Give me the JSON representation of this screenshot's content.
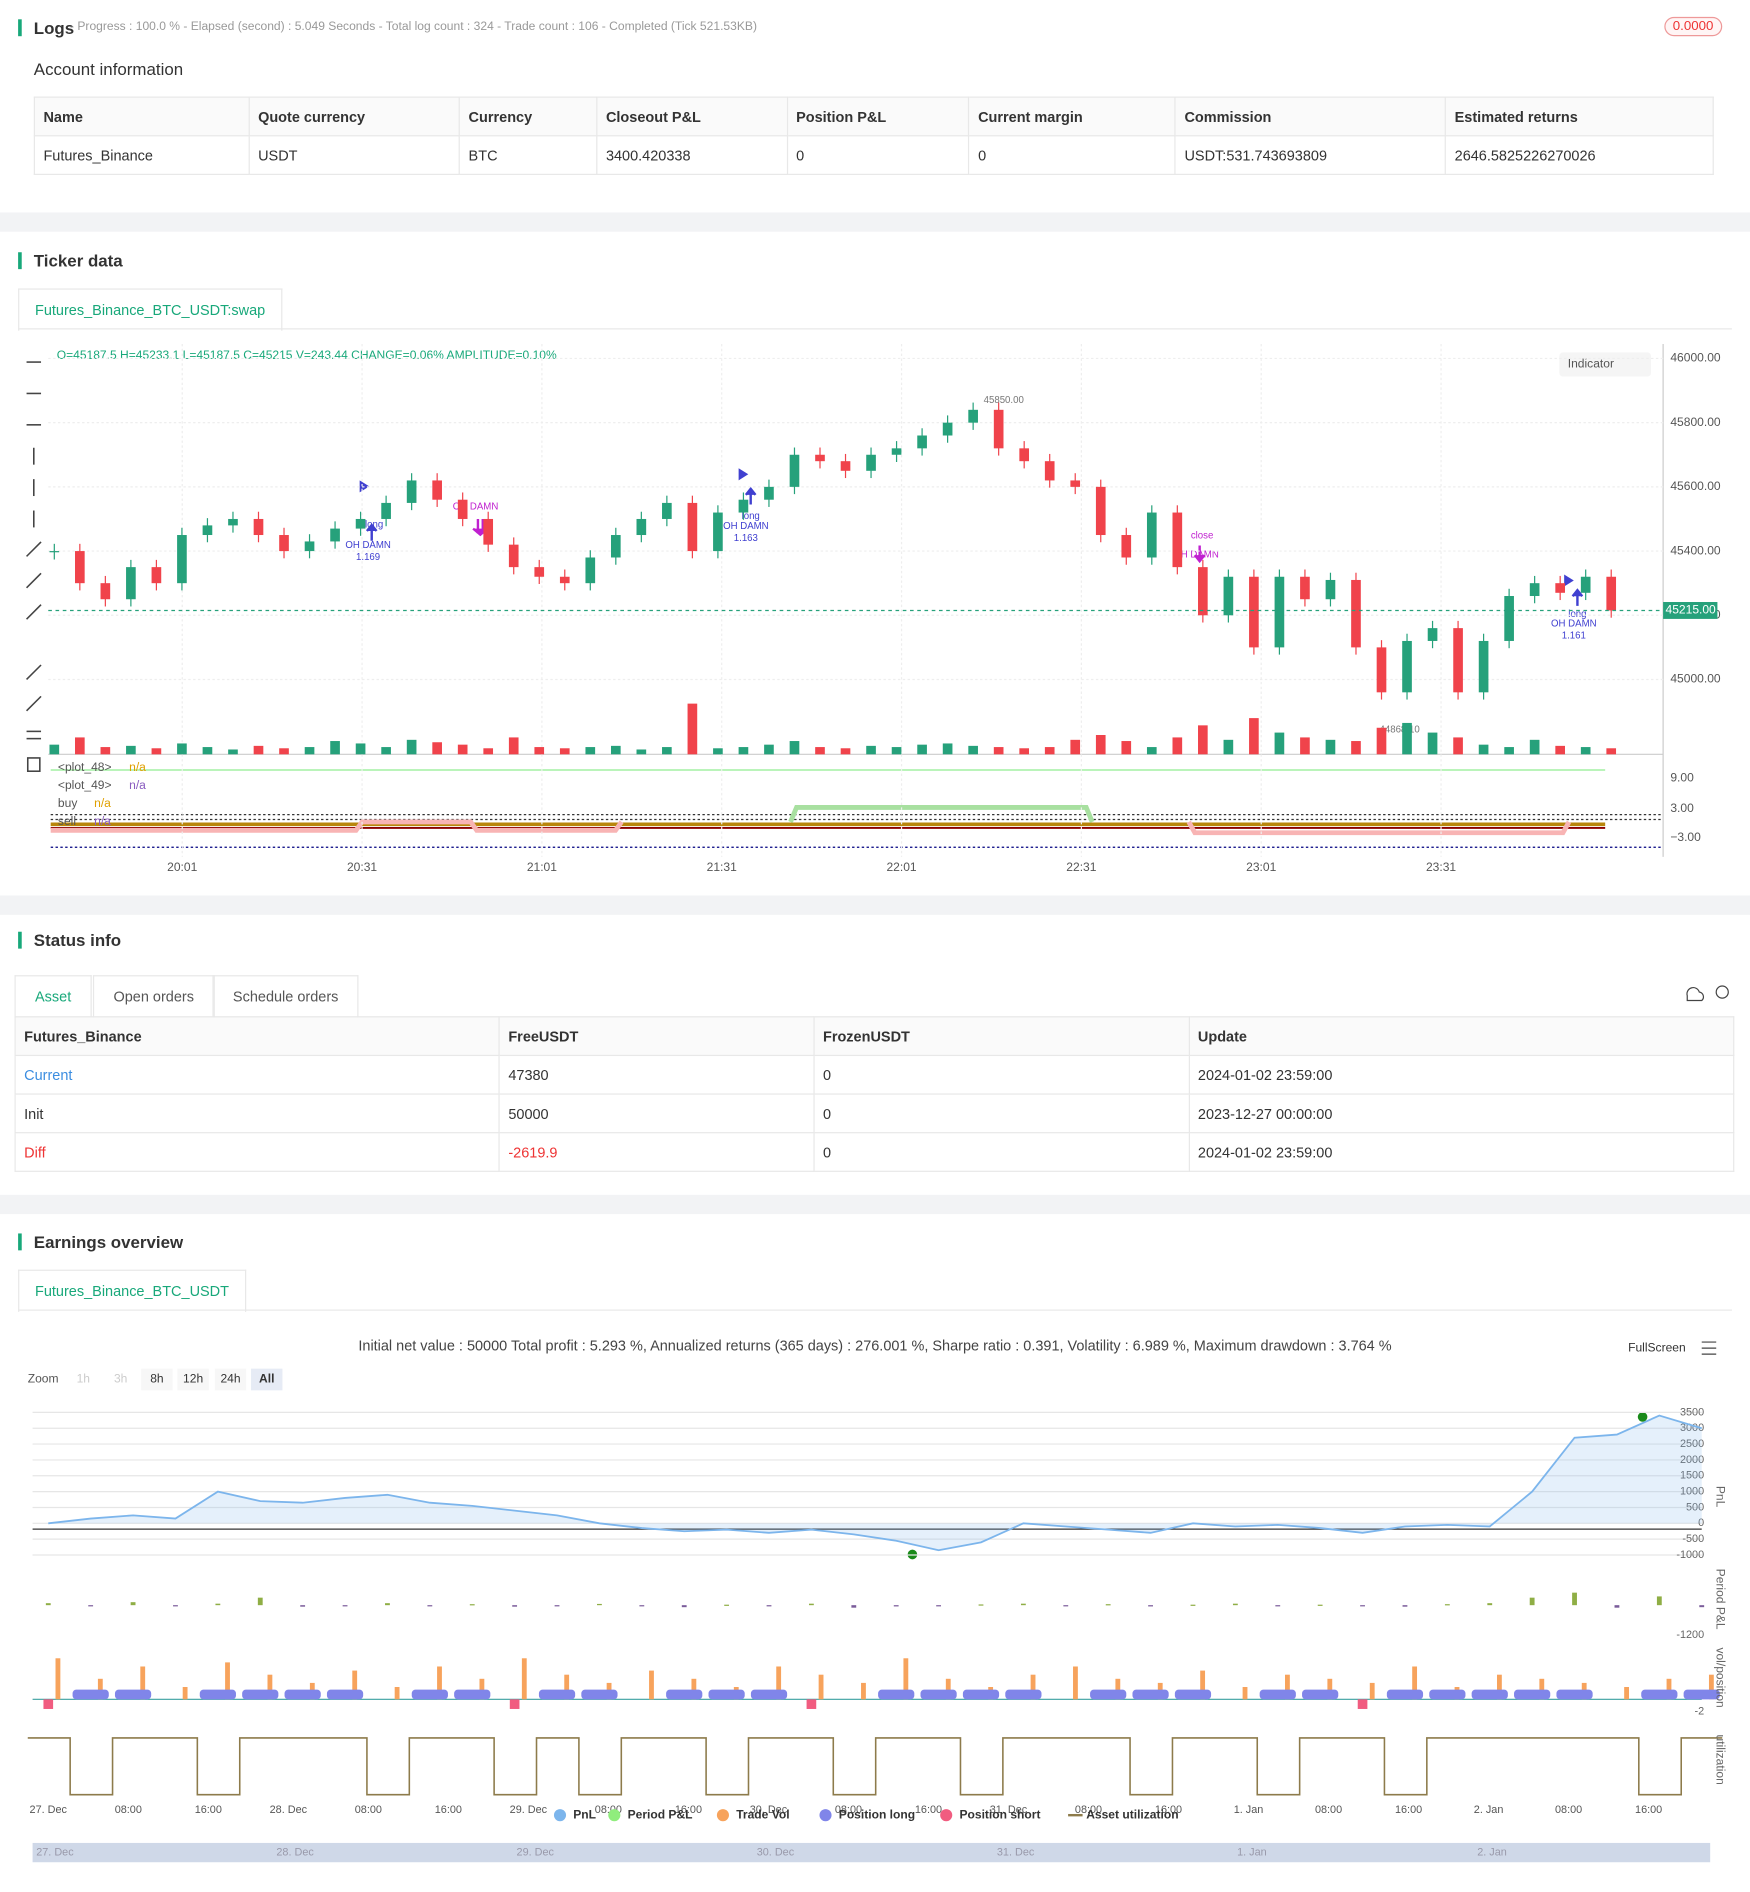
{
  "logs": {
    "title": "Logs",
    "progress": "- Progress : 100.0 % - Elapsed (second) : 5.049  Seconds - Total log count : 324 - Trade count : 106 - Completed (Tick 521.53KB)",
    "badge": "0.0000"
  },
  "account": {
    "title": "Account information",
    "columns": [
      "Name",
      "Quote currency",
      "Currency",
      "Closeout P&L",
      "Position P&L",
      "Current margin",
      "Commission",
      "Estimated returns"
    ],
    "rows": [
      [
        "Futures_Binance",
        "USDT",
        "BTC",
        "3400.420338",
        "0",
        "0",
        "USDT:531.743693809",
        "2646.5825226270026"
      ]
    ]
  },
  "ticker": {
    "title": "Ticker data",
    "tab": "Futures_Binance_BTC_USDT:swap",
    "ohlc": "O=45187.5 H=45233.1 L=45187.5 C=45215 V=243.44 CHANGE=0.06% AMPLITUDE=0.10%",
    "indicator_button": "Indicator",
    "annotations": [
      "45850.00",
      "44868.10",
      "long",
      "OH DAMN",
      "1.169",
      "OH DAMN",
      "long",
      "OH DAMN",
      "1.163",
      "close",
      "OH DAMN",
      "long",
      "OH DAMN",
      "1.161"
    ],
    "indicator_legend": [
      [
        "<plot_48>",
        "n/a"
      ],
      [
        "<plot_49>",
        "n/a"
      ],
      [
        "buy",
        "n/a"
      ],
      [
        "sell",
        "n/a"
      ]
    ],
    "indicator_yticks": [
      "9.00",
      "3.00",
      "−3.00"
    ]
  },
  "chart_data": [
    {
      "type": "candlestick",
      "closes": [
        45400,
        45300,
        45250,
        45350,
        45300,
        45450,
        45480,
        45500,
        45450,
        45400,
        45430,
        45470,
        45500,
        45550,
        45620,
        45560,
        45500,
        45420,
        45350,
        45320,
        45300,
        45380,
        45450,
        45500,
        45550,
        45400,
        45520,
        45560,
        45600,
        45700,
        45680,
        45650,
        45700,
        45720,
        45760,
        45800,
        45840,
        45720,
        45680,
        45620,
        45600,
        45450,
        45380,
        45520,
        45350,
        45200,
        45320,
        45100,
        45320,
        45250,
        45310,
        45100,
        44960,
        45120,
        45160,
        44960,
        45120,
        45260,
        45300,
        45270,
        45320,
        45215
      ],
      "volumes": [
        40,
        70,
        30,
        35,
        25,
        45,
        30,
        20,
        35,
        25,
        30,
        55,
        45,
        30,
        60,
        50,
        40,
        25,
        70,
        30,
        25,
        30,
        35,
        20,
        30,
        210,
        25,
        30,
        40,
        55,
        30,
        25,
        35,
        30,
        40,
        45,
        35,
        30,
        25,
        30,
        60,
        80,
        55,
        30,
        70,
        120,
        60,
        150,
        90,
        70,
        60,
        55,
        110,
        130,
        90,
        70,
        40,
        30,
        60,
        35,
        30,
        25
      ],
      "ylim": [
        44800,
        46000
      ],
      "vlim": [
        0,
        250
      ],
      "yticks": [
        {
          "value": 45000,
          "label": "45000.00"
        },
        {
          "value": 45200,
          "label": "45200.00"
        },
        {
          "value": 45400,
          "label": "45400.00"
        },
        {
          "value": 45600,
          "label": "45600.00"
        },
        {
          "value": 45800,
          "label": "45800.00"
        },
        {
          "value": 46000,
          "label": "46000.00"
        }
      ],
      "last_price": {
        "value": 45215,
        "label": "45215.00"
      },
      "xticks": [
        "20:01",
        "20:31",
        "21:01",
        "21:31",
        "22:01",
        "22:31",
        "23:01",
        "23:31"
      ]
    },
    {
      "type": "line",
      "title": "Earnings overview",
      "tab": "Futures_Binance_BTC_USDT",
      "stats": "Initial net value : 50000 Total profit : 5.293 %, Annualized returns (365 days) : 276.001 %, Sharpe ratio : 0.391, Volatility : 6.989 %, Maximum drawdown : 3.764 %",
      "fullscreen": "FullScreen",
      "zoom": "Zoom",
      "zoom_buttons": [
        "1h",
        "3h",
        "8h",
        "12h",
        "24h",
        "All"
      ],
      "pnl": [
        0,
        150,
        250,
        150,
        1000,
        700,
        650,
        800,
        900,
        650,
        550,
        400,
        250,
        0,
        -150,
        -250,
        -200,
        -300,
        -200,
        -350,
        -550,
        -850,
        -600,
        0,
        -100,
        -200,
        -300,
        0,
        -100,
        -50,
        -150,
        -300,
        -100,
        -50,
        -100,
        1000,
        2700,
        2800,
        3400,
        3000
      ],
      "ylim": [
        -1250,
        3700
      ],
      "yticks": [
        -1000,
        -500,
        0,
        500,
        1000,
        1500,
        2000,
        2500,
        3000,
        3500
      ],
      "period_pnl": [
        80,
        -40,
        120,
        -30,
        60,
        300,
        -60,
        -40,
        80,
        -20,
        40,
        -60,
        -30,
        50,
        -20,
        -80,
        20,
        -40,
        60,
        -100,
        -50,
        -40,
        30,
        60,
        -30,
        40,
        -50,
        20,
        60,
        -40,
        20,
        -30,
        -60,
        40,
        80,
        300,
        500,
        -100,
        350,
        -80
      ],
      "period_ylim": [
        -1200,
        1450
      ],
      "period_tick": -1200,
      "trade_vol": [
        1,
        0.5,
        0.8,
        0.3,
        0.9,
        0.6,
        0.4,
        0.7,
        0.3,
        0.8,
        0.5,
        1,
        0.6,
        0.4,
        0.7,
        0.5,
        0.3,
        0.8,
        0.6,
        0.4,
        1,
        0.5,
        0.3,
        0.6,
        0.8,
        0.5,
        0.4,
        0.7,
        0.3,
        0.6,
        0.5,
        0.4,
        0.8,
        0.3,
        0.6,
        0.5,
        0.4,
        0.3,
        0.5,
        0.6
      ],
      "position": [
        -1,
        1,
        1,
        0,
        1,
        1,
        1,
        1,
        0,
        1,
        1,
        -1,
        1,
        1,
        0,
        1,
        1,
        1,
        -1,
        0,
        1,
        1,
        1,
        1,
        0,
        1,
        1,
        1,
        0,
        1,
        1,
        -1,
        1,
        1,
        1,
        1,
        1,
        0,
        1,
        1
      ],
      "vol_tick": -2,
      "utilization": [
        1,
        0,
        1,
        1,
        0,
        1,
        1,
        1,
        0,
        1,
        1,
        0,
        1,
        0,
        1,
        1,
        0,
        1,
        1,
        0,
        1,
        1,
        0,
        1,
        1,
        1,
        0,
        1,
        1,
        0,
        1,
        1,
        0,
        1,
        1,
        1,
        1,
        1,
        0,
        1
      ],
      "axis_titles": [
        "PnL",
        "Period P&L",
        "vol/position",
        "utilization"
      ],
      "xticks": [
        "27. Dec",
        "08:00",
        "16:00",
        "28. Dec",
        "08:00",
        "16:00",
        "29. Dec",
        "08:00",
        "16:00",
        "30. Dec",
        "08:00",
        "16:00",
        "31. Dec",
        "08:00",
        "16:00",
        "1. Jan",
        "08:00",
        "16:00",
        "2. Jan",
        "08:00",
        "16:00"
      ],
      "series": [
        {
          "name": "PnL",
          "color": "#7cb5ec"
        },
        {
          "name": "Period P&L",
          "color": "#90ed7d"
        },
        {
          "name": "Trade Vol",
          "color": "#f7a35c"
        },
        {
          "name": "Position long",
          "color": "#8085e9"
        },
        {
          "name": "Position short",
          "color": "#f15c80"
        },
        {
          "name": "Asset utilization",
          "color": "#8d7b4b"
        }
      ],
      "navigator": [
        "27. Dec",
        "28. Dec",
        "29. Dec",
        "30. Dec",
        "31. Dec",
        "1. Jan",
        "2. Jan"
      ]
    }
  ],
  "status": {
    "title": "Status info",
    "tabs": [
      "Asset",
      "Open orders",
      "Schedule orders"
    ],
    "columns": [
      "Futures_Binance",
      "FreeUSDT",
      "FrozenUSDT",
      "Update"
    ],
    "rows": [
      [
        "Current",
        "47380",
        "0",
        "2024-01-02 23:59:00"
      ],
      [
        "Init",
        "50000",
        "0",
        "2023-12-27 00:00:00"
      ],
      [
        "Diff",
        "-2619.9",
        "0",
        "2024-01-02 23:59:00"
      ]
    ]
  }
}
